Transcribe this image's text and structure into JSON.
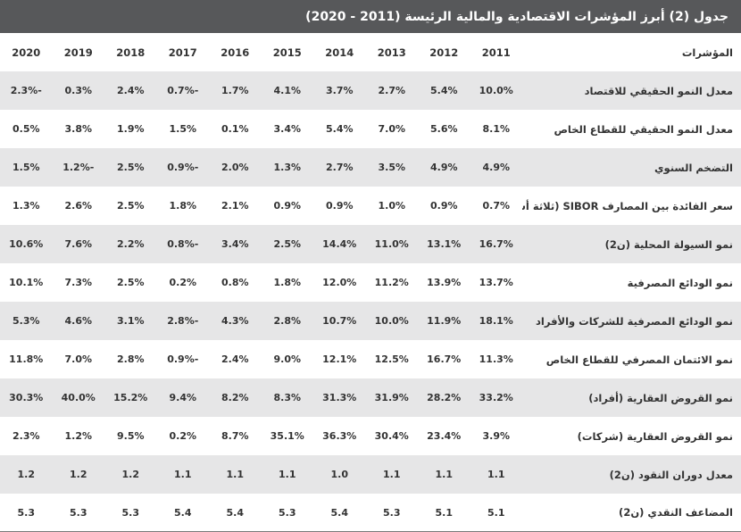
{
  "title": "جدول (2) أبرز المؤشرات الاقتصادية والمالية الرئيسة (2011 - 2020)",
  "header": {
    "label": "المؤشرات",
    "years": [
      "2011",
      "2012",
      "2013",
      "2014",
      "2015",
      "2016",
      "2017",
      "2018",
      "2019",
      "2020"
    ]
  },
  "rows": [
    {
      "label": "معدل النمو الحقيقي للاقتصاد",
      "values": [
        "10.0%",
        "5.4%",
        "2.7%",
        "3.7%",
        "4.1%",
        "1.7%",
        "-0.7%",
        "2.4%",
        "0.3%",
        "-2.3%"
      ]
    },
    {
      "label": "معدل النمو الحقيقي للقطاع الخاص",
      "values": [
        "8.1%",
        "5.6%",
        "7.0%",
        "5.4%",
        "3.4%",
        "0.1%",
        "1.5%",
        "1.9%",
        "3.8%",
        "0.5%"
      ]
    },
    {
      "label": "التضخم السنوي",
      "values": [
        "4.9%",
        "4.9%",
        "3.5%",
        "2.7%",
        "1.3%",
        "2.0%",
        "-0.9%",
        "2.5%",
        "-1.2%",
        "1.5%"
      ]
    },
    {
      "label": "سعر الفائدة بين المصارف SIBOR (ثلاثة أشهر)",
      "values": [
        "0.7%",
        "0.9%",
        "1.0%",
        "0.9%",
        "0.9%",
        "2.1%",
        "1.8%",
        "2.5%",
        "2.6%",
        "1.3%"
      ]
    },
    {
      "label": "نمو السيولة المحلية (ن2)",
      "values": [
        "16.7%",
        "13.1%",
        "11.0%",
        "14.4%",
        "2.5%",
        "3.4%",
        "-0.8%",
        "2.2%",
        "7.6%",
        "10.6%"
      ]
    },
    {
      "label": "نمو الودائع المصرفية",
      "values": [
        "13.7%",
        "13.9%",
        "11.2%",
        "12.0%",
        "1.8%",
        "0.8%",
        "0.2%",
        "2.5%",
        "7.3%",
        "10.1%"
      ]
    },
    {
      "label": "نمو الودائع المصرفية للشركات والأفراد",
      "values": [
        "18.1%",
        "11.9%",
        "10.0%",
        "10.7%",
        "2.8%",
        "4.3%",
        "-2.8%",
        "3.1%",
        "4.6%",
        "5.3%"
      ]
    },
    {
      "label": "نمو الائتمان المصرفي للقطاع الخاص",
      "values": [
        "11.3%",
        "16.7%",
        "12.5%",
        "12.1%",
        "9.0%",
        "2.4%",
        "-0.9%",
        "2.8%",
        "7.0%",
        "11.8%"
      ]
    },
    {
      "label": "نمو القروض العقارية (أفراد)",
      "values": [
        "33.2%",
        "28.2%",
        "31.9%",
        "31.3%",
        "8.3%",
        "8.2%",
        "9.4%",
        "15.2%",
        "40.0%",
        "30.3%"
      ]
    },
    {
      "label": "نمو القروض العقارية (شركات)",
      "values": [
        "3.9%",
        "23.4%",
        "30.4%",
        "36.3%",
        "35.1%",
        "8.7%",
        "0.2%",
        "9.5%",
        "1.2%",
        "2.3%"
      ]
    },
    {
      "label": "معدل دوران النقود (ن2)",
      "values": [
        "1.1",
        "1.1",
        "1.1",
        "1.0",
        "1.1",
        "1.1",
        "1.1",
        "1.2",
        "1.2",
        "1.2"
      ]
    },
    {
      "label": "المضاعف النقدي (ن2)",
      "values": [
        "5.1",
        "5.1",
        "5.3",
        "5.4",
        "5.3",
        "5.4",
        "5.4",
        "5.3",
        "5.3",
        "5.3"
      ]
    }
  ]
}
